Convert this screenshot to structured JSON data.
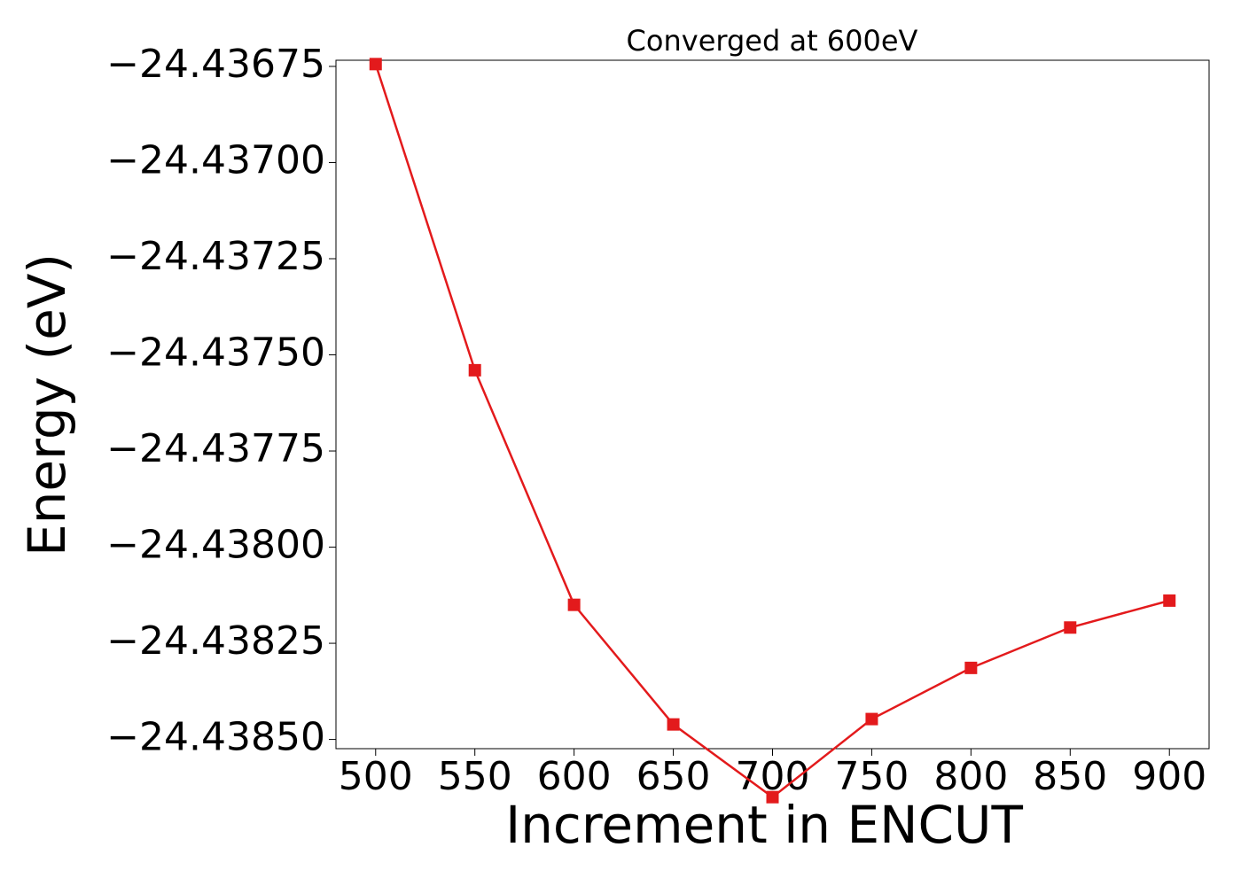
{
  "chart_data": {
    "type": "line",
    "title": "Converged at 600eV",
    "x_label": "Increment in ENCUT",
    "y_label": "Energy (eV)",
    "x": [
      500,
      550,
      600,
      650,
      700,
      750,
      800,
      850,
      900
    ],
    "series": [
      {
        "name": "Energy",
        "color": "#e31a1c",
        "values": [
          -24.436744,
          -24.43754,
          -24.43815,
          -24.438461,
          -24.43865,
          -24.438447,
          -24.438314,
          -24.438209,
          -24.438139
        ]
      }
    ],
    "xlim": [
      480,
      920
    ],
    "xticks": [
      500,
      550,
      600,
      650,
      700,
      750,
      800,
      850,
      900
    ],
    "ylim": [
      -24.438524,
      -24.436734
    ],
    "yticks": [
      {
        "value": -24.43675,
        "label": "−24.43675"
      },
      {
        "value": -24.437,
        "label": "−24.43700"
      },
      {
        "value": -24.43725,
        "label": "−24.43725"
      },
      {
        "value": -24.4375,
        "label": "−24.43750"
      },
      {
        "value": -24.43775,
        "label": "−24.43775"
      },
      {
        "value": -24.438,
        "label": "−24.43800"
      },
      {
        "value": -24.43825,
        "label": "−24.43825"
      },
      {
        "value": -24.4385,
        "label": "−24.43850"
      }
    ],
    "grid": false
  }
}
